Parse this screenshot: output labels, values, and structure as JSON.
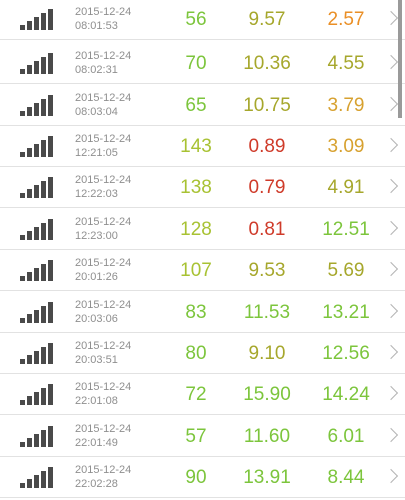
{
  "colors": {
    "green": "#7cc53c",
    "yellow_green": "#a8c233",
    "olive": "#a6a72c",
    "orange": "#ea8f26",
    "amber": "#d7a12f",
    "red": "#cf3b2a",
    "lime": "#8ac23a"
  },
  "rows": [
    {
      "date": "2015-12-24",
      "time": "08:01:53",
      "v1": "56",
      "v2": "9.57",
      "v3": "2.57",
      "c1": "#7cc53c",
      "c2": "#a6a72c",
      "c3": "#ea8f26"
    },
    {
      "date": "2015-12-24",
      "time": "08:02:31",
      "v1": "70",
      "v2": "10.36",
      "v3": "4.55",
      "c1": "#7cc53c",
      "c2": "#a6a72c",
      "c3": "#a6a72c"
    },
    {
      "date": "2015-12-24",
      "time": "08:03:04",
      "v1": "65",
      "v2": "10.75",
      "v3": "3.79",
      "c1": "#7cc53c",
      "c2": "#a6a72c",
      "c3": "#d7a12f"
    },
    {
      "date": "2015-12-24",
      "time": "12:21:05",
      "v1": "143",
      "v2": "0.89",
      "v3": "3.09",
      "c1": "#a8c233",
      "c2": "#cf3b2a",
      "c3": "#d7a12f"
    },
    {
      "date": "2015-12-24",
      "time": "12:22:03",
      "v1": "138",
      "v2": "0.79",
      "v3": "4.91",
      "c1": "#a8c233",
      "c2": "#cf3b2a",
      "c3": "#a6a72c"
    },
    {
      "date": "2015-12-24",
      "time": "12:23:00",
      "v1": "128",
      "v2": "0.81",
      "v3": "12.51",
      "c1": "#a8c233",
      "c2": "#cf3b2a",
      "c3": "#7cc53c"
    },
    {
      "date": "2015-12-24",
      "time": "20:01:26",
      "v1": "107",
      "v2": "9.53",
      "v3": "5.69",
      "c1": "#a8c233",
      "c2": "#a6a72c",
      "c3": "#a6a72c"
    },
    {
      "date": "2015-12-24",
      "time": "20:03:06",
      "v1": "83",
      "v2": "11.53",
      "v3": "13.21",
      "c1": "#7cc53c",
      "c2": "#7cc53c",
      "c3": "#7cc53c"
    },
    {
      "date": "2015-12-24",
      "time": "20:03:51",
      "v1": "80",
      "v2": "9.10",
      "v3": "12.56",
      "c1": "#7cc53c",
      "c2": "#a6a72c",
      "c3": "#7cc53c"
    },
    {
      "date": "2015-12-24",
      "time": "22:01:08",
      "v1": "72",
      "v2": "15.90",
      "v3": "14.24",
      "c1": "#7cc53c",
      "c2": "#7cc53c",
      "c3": "#7cc53c"
    },
    {
      "date": "2015-12-24",
      "time": "22:01:49",
      "v1": "57",
      "v2": "11.60",
      "v3": "6.01",
      "c1": "#7cc53c",
      "c2": "#7cc53c",
      "c3": "#7cc53c"
    },
    {
      "date": "2015-12-24",
      "time": "22:02:28",
      "v1": "90",
      "v2": "13.91",
      "v3": "8.44",
      "c1": "#7cc53c",
      "c2": "#7cc53c",
      "c3": "#7cc53c"
    }
  ],
  "icons": {
    "signal": "signal-strength-icon",
    "chevron": "chevron-right-icon"
  }
}
